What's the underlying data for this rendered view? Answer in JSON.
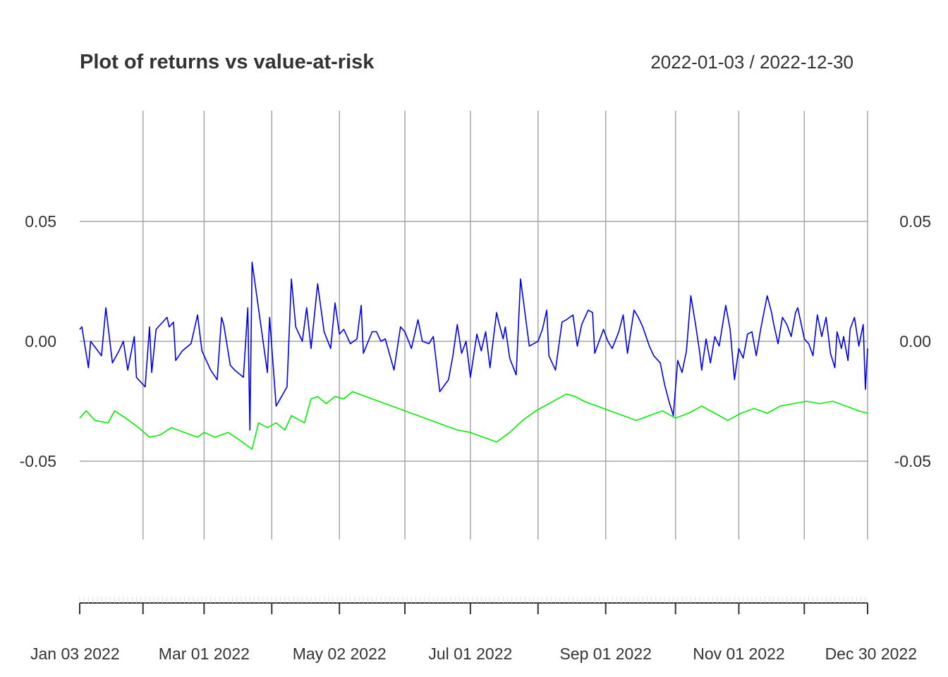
{
  "chart_data": {
    "type": "line",
    "title": "Plot of returns vs value-at-risk",
    "subtitle": "2022-01-03 / 2022-12-30",
    "x_range": [
      "2022-01-03",
      "2022-12-30"
    ],
    "ylim": [
      -0.08,
      0.1
    ],
    "grid": true,
    "y_ticks": [
      {
        "value": 0.05,
        "label": "0.05"
      },
      {
        "value": 0.0,
        "label": "0.00"
      },
      {
        "value": -0.05,
        "label": "-0.05"
      }
    ],
    "x_ticks": [
      {
        "date": "2022-01-03",
        "label": "Jan 03 2022"
      },
      {
        "date": "2022-03-01",
        "label": "Mar 01 2022"
      },
      {
        "date": "2022-05-02",
        "label": "May 02 2022"
      },
      {
        "date": "2022-07-01",
        "label": "Jul 01 2022"
      },
      {
        "date": "2022-09-01",
        "label": "Sep 01 2022"
      },
      {
        "date": "2022-11-01",
        "label": "Nov 01 2022"
      },
      {
        "date": "2022-12-30",
        "label": "Dec 30 2022"
      }
    ],
    "extra_gridlines": [
      "2022-02-01",
      "2022-04-01",
      "2022-06-01",
      "2022-08-01",
      "2022-10-03",
      "2022-12-01"
    ],
    "series": [
      {
        "color": "#0000ee",
        "points": [
          [
            "2022-01-03",
            0.005
          ],
          [
            "2022-01-04",
            0.006
          ],
          [
            "2022-01-07",
            -0.011
          ],
          [
            "2022-01-08",
            0.0
          ],
          [
            "2022-01-13",
            -0.006
          ],
          [
            "2022-01-15",
            0.014
          ],
          [
            "2022-01-18",
            -0.009
          ],
          [
            "2022-01-21",
            -0.004
          ],
          [
            "2022-01-23",
            0.0
          ],
          [
            "2022-01-25",
            -0.012
          ],
          [
            "2022-01-28",
            0.002
          ],
          [
            "2022-01-29",
            -0.015
          ],
          [
            "2022-02-02",
            -0.019
          ],
          [
            "2022-02-04",
            0.006
          ],
          [
            "2022-02-05",
            -0.013
          ],
          [
            "2022-02-07",
            0.005
          ],
          [
            "2022-02-12",
            0.01
          ],
          [
            "2022-02-13",
            0.006
          ],
          [
            "2022-02-15",
            0.008
          ],
          [
            "2022-02-16",
            -0.008
          ],
          [
            "2022-02-19",
            -0.004
          ],
          [
            "2022-02-23",
            -0.001
          ],
          [
            "2022-02-26",
            0.011
          ],
          [
            "2022-02-28",
            -0.004
          ],
          [
            "2022-03-04",
            -0.012
          ],
          [
            "2022-03-07",
            -0.016
          ],
          [
            "2022-03-09",
            0.01
          ],
          [
            "2022-03-10",
            0.007
          ],
          [
            "2022-03-13",
            -0.01
          ],
          [
            "2022-03-15",
            -0.012
          ],
          [
            "2022-03-19",
            -0.015
          ],
          [
            "2022-03-21",
            0.014
          ],
          [
            "2022-03-22",
            -0.037
          ],
          [
            "2022-03-23",
            0.033
          ],
          [
            "2022-03-30",
            -0.013
          ],
          [
            "2022-03-31",
            0.01
          ],
          [
            "2022-04-03",
            -0.027
          ],
          [
            "2022-04-08",
            -0.019
          ],
          [
            "2022-04-10",
            0.026
          ],
          [
            "2022-04-12",
            0.006
          ],
          [
            "2022-04-15",
            0.0
          ],
          [
            "2022-04-17",
            0.014
          ],
          [
            "2022-04-19",
            -0.003
          ],
          [
            "2022-04-22",
            0.024
          ],
          [
            "2022-04-25",
            0.004
          ],
          [
            "2022-04-28",
            -0.003
          ],
          [
            "2022-04-30",
            0.016
          ],
          [
            "2022-05-02",
            0.003
          ],
          [
            "2022-05-04",
            0.005
          ],
          [
            "2022-05-05",
            0.003
          ],
          [
            "2022-05-07",
            -0.001
          ],
          [
            "2022-05-10",
            0.001
          ],
          [
            "2022-05-12",
            0.015
          ],
          [
            "2022-05-13",
            -0.005
          ],
          [
            "2022-05-17",
            0.004
          ],
          [
            "2022-05-19",
            0.004
          ],
          [
            "2022-05-21",
            0.0
          ],
          [
            "2022-05-23",
            0.001
          ],
          [
            "2022-05-27",
            -0.012
          ],
          [
            "2022-05-30",
            0.006
          ],
          [
            "2022-06-01",
            0.004
          ],
          [
            "2022-06-04",
            -0.003
          ],
          [
            "2022-06-07",
            0.009
          ],
          [
            "2022-06-09",
            0.0
          ],
          [
            "2022-06-12",
            -0.001
          ],
          [
            "2022-06-14",
            0.002
          ],
          [
            "2022-06-17",
            -0.021
          ],
          [
            "2022-06-21",
            -0.016
          ],
          [
            "2022-06-23",
            -0.006
          ],
          [
            "2022-06-25",
            0.007
          ],
          [
            "2022-06-27",
            -0.005
          ],
          [
            "2022-06-29",
            0.0
          ],
          [
            "2022-07-01",
            -0.015
          ],
          [
            "2022-07-02",
            -0.009
          ],
          [
            "2022-07-04",
            0.003
          ],
          [
            "2022-07-06",
            -0.004
          ],
          [
            "2022-07-08",
            0.004
          ],
          [
            "2022-07-10",
            -0.011
          ],
          [
            "2022-07-11",
            -0.003
          ],
          [
            "2022-07-13",
            0.012
          ],
          [
            "2022-07-14",
            0.008
          ],
          [
            "2022-07-16",
            0.001
          ],
          [
            "2022-07-17",
            0.006
          ],
          [
            "2022-07-19",
            -0.007
          ],
          [
            "2022-07-22",
            -0.014
          ],
          [
            "2022-07-24",
            0.026
          ],
          [
            "2022-07-28",
            -0.002
          ],
          [
            "2022-08-01",
            0.0
          ],
          [
            "2022-08-03",
            0.005
          ],
          [
            "2022-08-05",
            0.013
          ],
          [
            "2022-08-06",
            -0.006
          ],
          [
            "2022-08-09",
            -0.012
          ],
          [
            "2022-08-12",
            0.008
          ],
          [
            "2022-08-14",
            0.009
          ],
          [
            "2022-08-17",
            0.011
          ],
          [
            "2022-08-19",
            -0.002
          ],
          [
            "2022-08-21",
            0.007
          ],
          [
            "2022-08-24",
            0.013
          ],
          [
            "2022-08-26",
            0.012
          ],
          [
            "2022-08-27",
            -0.005
          ],
          [
            "2022-08-31",
            0.005
          ],
          [
            "2022-09-02",
            0.0
          ],
          [
            "2022-09-04",
            -0.003
          ],
          [
            "2022-09-07",
            0.004
          ],
          [
            "2022-09-09",
            0.011
          ],
          [
            "2022-09-11",
            -0.005
          ],
          [
            "2022-09-14",
            0.013
          ],
          [
            "2022-09-16",
            0.01
          ],
          [
            "2022-09-18",
            0.006
          ],
          [
            "2022-09-21",
            -0.002
          ],
          [
            "2022-09-23",
            -0.006
          ],
          [
            "2022-09-26",
            -0.009
          ],
          [
            "2022-09-28",
            -0.018
          ],
          [
            "2022-09-30",
            -0.025
          ],
          [
            "2022-10-02",
            -0.031
          ],
          [
            "2022-10-04",
            -0.008
          ],
          [
            "2022-10-06",
            -0.013
          ],
          [
            "2022-10-08",
            -0.004
          ],
          [
            "2022-10-10",
            0.019
          ],
          [
            "2022-10-12",
            0.008
          ],
          [
            "2022-10-14",
            -0.004
          ],
          [
            "2022-10-15",
            -0.012
          ],
          [
            "2022-10-17",
            0.001
          ],
          [
            "2022-10-19",
            -0.009
          ],
          [
            "2022-10-21",
            0.002
          ],
          [
            "2022-10-23",
            -0.002
          ],
          [
            "2022-10-26",
            0.015
          ],
          [
            "2022-10-28",
            0.005
          ],
          [
            "2022-10-30",
            -0.016
          ],
          [
            "2022-11-01",
            -0.003
          ],
          [
            "2022-11-03",
            -0.007
          ],
          [
            "2022-11-05",
            0.003
          ],
          [
            "2022-11-07",
            0.004
          ],
          [
            "2022-11-09",
            -0.006
          ],
          [
            "2022-11-11",
            0.005
          ],
          [
            "2022-11-14",
            0.019
          ],
          [
            "2022-11-16",
            0.012
          ],
          [
            "2022-11-17",
            0.007
          ],
          [
            "2022-11-19",
            -0.001
          ],
          [
            "2022-11-21",
            0.01
          ],
          [
            "2022-11-23",
            0.007
          ],
          [
            "2022-11-25",
            0.002
          ],
          [
            "2022-11-27",
            0.012
          ],
          [
            "2022-11-28",
            0.014
          ],
          [
            "2022-12-01",
            0.001
          ],
          [
            "2022-12-03",
            -0.001
          ],
          [
            "2022-12-05",
            -0.006
          ],
          [
            "2022-12-07",
            0.011
          ],
          [
            "2022-12-09",
            0.002
          ],
          [
            "2022-12-11",
            0.01
          ],
          [
            "2022-12-13",
            -0.005
          ],
          [
            "2022-12-15",
            -0.011
          ],
          [
            "2022-12-16",
            0.004
          ],
          [
            "2022-12-18",
            -0.003
          ],
          [
            "2022-12-19",
            0.002
          ],
          [
            "2022-12-21",
            -0.008
          ],
          [
            "2022-12-22",
            0.005
          ],
          [
            "2022-12-24",
            0.01
          ],
          [
            "2022-12-26",
            -0.002
          ],
          [
            "2022-12-28",
            0.007
          ],
          [
            "2022-12-29",
            -0.02
          ],
          [
            "2022-12-30",
            -0.003
          ]
        ]
      },
      {
        "color": "#00ee00",
        "points": [
          [
            "2022-01-03",
            -0.032
          ],
          [
            "2022-01-06",
            -0.029
          ],
          [
            "2022-01-10",
            -0.033
          ],
          [
            "2022-01-16",
            -0.034
          ],
          [
            "2022-01-19",
            -0.029
          ],
          [
            "2022-01-24",
            -0.032
          ],
          [
            "2022-01-30",
            -0.036
          ],
          [
            "2022-02-04",
            -0.04
          ],
          [
            "2022-02-09",
            -0.039
          ],
          [
            "2022-02-14",
            -0.036
          ],
          [
            "2022-02-20",
            -0.038
          ],
          [
            "2022-02-26",
            -0.04
          ],
          [
            "2022-03-01",
            -0.038
          ],
          [
            "2022-03-06",
            -0.04
          ],
          [
            "2022-03-12",
            -0.038
          ],
          [
            "2022-03-17",
            -0.041
          ],
          [
            "2022-03-23",
            -0.045
          ],
          [
            "2022-03-26",
            -0.034
          ],
          [
            "2022-03-30",
            -0.036
          ],
          [
            "2022-04-03",
            -0.034
          ],
          [
            "2022-04-07",
            -0.037
          ],
          [
            "2022-04-10",
            -0.031
          ],
          [
            "2022-04-16",
            -0.034
          ],
          [
            "2022-04-19",
            -0.024
          ],
          [
            "2022-04-22",
            -0.023
          ],
          [
            "2022-04-26",
            -0.026
          ],
          [
            "2022-04-30",
            -0.023
          ],
          [
            "2022-05-04",
            -0.024
          ],
          [
            "2022-05-08",
            -0.021
          ],
          [
            "2022-05-14",
            -0.023
          ],
          [
            "2022-05-20",
            -0.025
          ],
          [
            "2022-05-26",
            -0.027
          ],
          [
            "2022-06-01",
            -0.029
          ],
          [
            "2022-06-07",
            -0.031
          ],
          [
            "2022-06-13",
            -0.033
          ],
          [
            "2022-06-19",
            -0.035
          ],
          [
            "2022-06-25",
            -0.037
          ],
          [
            "2022-07-01",
            -0.038
          ],
          [
            "2022-07-07",
            -0.04
          ],
          [
            "2022-07-13",
            -0.042
          ],
          [
            "2022-07-19",
            -0.038
          ],
          [
            "2022-07-25",
            -0.033
          ],
          [
            "2022-07-31",
            -0.029
          ],
          [
            "2022-08-06",
            -0.026
          ],
          [
            "2022-08-10",
            -0.024
          ],
          [
            "2022-08-14",
            -0.022
          ],
          [
            "2022-08-18",
            -0.023
          ],
          [
            "2022-08-22",
            -0.025
          ],
          [
            "2022-08-28",
            -0.027
          ],
          [
            "2022-09-03",
            -0.029
          ],
          [
            "2022-09-09",
            -0.031
          ],
          [
            "2022-09-15",
            -0.033
          ],
          [
            "2022-09-21",
            -0.031
          ],
          [
            "2022-09-27",
            -0.029
          ],
          [
            "2022-10-03",
            -0.032
          ],
          [
            "2022-10-09",
            -0.03
          ],
          [
            "2022-10-15",
            -0.027
          ],
          [
            "2022-10-21",
            -0.03
          ],
          [
            "2022-10-27",
            -0.033
          ],
          [
            "2022-11-02",
            -0.03
          ],
          [
            "2022-11-08",
            -0.028
          ],
          [
            "2022-11-14",
            -0.03
          ],
          [
            "2022-11-20",
            -0.027
          ],
          [
            "2022-11-26",
            -0.026
          ],
          [
            "2022-12-02",
            -0.025
          ],
          [
            "2022-12-08",
            -0.026
          ],
          [
            "2022-12-14",
            -0.025
          ],
          [
            "2022-12-20",
            -0.027
          ],
          [
            "2022-12-26",
            -0.029
          ],
          [
            "2022-12-30",
            -0.03
          ]
        ]
      }
    ]
  }
}
